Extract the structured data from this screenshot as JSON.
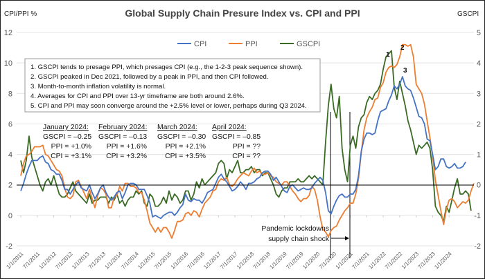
{
  "chart_data": {
    "type": "line",
    "title": "Global Supply Chain Presure Index vs. CPI and PPI",
    "ylabel_left": "CPI/PPI %",
    "ylabel_right": "GSCPI",
    "ylim_left": [
      -2,
      12
    ],
    "yticks_left": [
      "-2",
      "0",
      "2",
      "4",
      "6",
      "8",
      "10",
      "12"
    ],
    "ylim_right": [
      -2,
      5
    ],
    "yticks_right": [
      "-2",
      "-1",
      "0",
      "1",
      "2",
      "3",
      "4",
      "5"
    ],
    "grid": true,
    "legend_position": "top-center",
    "x_start": "1/1/2011",
    "x_end": "3/1/2024",
    "xtick_labels": [
      "1/1/2011",
      "7/1/2011",
      "1/1/2012",
      "7/1/2012",
      "1/1/2013",
      "7/1/2013",
      "1/1/2014",
      "7/1/2014",
      "1/1/2015",
      "7/1/2015",
      "1/1/2016",
      "7/1/2016",
      "1/1/2017",
      "7/1/2017",
      "1/1/2018",
      "7/1/2018",
      "1/1/2019",
      "7/1/2019",
      "1/1/2020",
      "7/1/2020",
      "1/1/2021",
      "7/1/2021",
      "1/1/2022",
      "7/1/2022",
      "1/1/2023",
      "7/1/2023",
      "1/1/2024"
    ],
    "series": [
      {
        "name": "CPI",
        "axis": "left",
        "color": "#4472C4",
        "values": [
          1.6,
          2.1,
          2.7,
          3.2,
          3.6,
          3.6,
          3.6,
          3.8,
          3.9,
          3.5,
          3.4,
          3.0,
          2.9,
          2.7,
          2.7,
          2.3,
          1.7,
          1.7,
          1.4,
          1.7,
          2.0,
          2.2,
          1.8,
          1.7,
          1.6,
          2.0,
          1.5,
          1.1,
          1.4,
          1.8,
          2.0,
          1.5,
          1.2,
          1.0,
          1.2,
          1.5,
          1.6,
          1.1,
          1.5,
          2.0,
          2.1,
          2.1,
          2.0,
          1.7,
          1.7,
          1.7,
          1.3,
          0.8,
          -0.1,
          0.0,
          -0.1,
          -0.2,
          0.0,
          0.1,
          0.2,
          0.2,
          0.0,
          0.2,
          0.5,
          0.7,
          1.4,
          1.0,
          0.9,
          1.1,
          1.0,
          1.0,
          0.8,
          1.1,
          1.5,
          1.6,
          1.7,
          2.1,
          2.5,
          2.7,
          2.4,
          2.2,
          1.9,
          1.6,
          1.7,
          1.9,
          2.2,
          2.0,
          1.7,
          2.1,
          2.1,
          2.2,
          2.4,
          2.5,
          2.8,
          2.9,
          2.9,
          2.7,
          2.3,
          2.5,
          2.2,
          1.9,
          1.6,
          1.5,
          1.9,
          2.0,
          1.8,
          1.6,
          1.7,
          1.8,
          1.7,
          1.7,
          1.8,
          2.1,
          2.3,
          2.5,
          2.3,
          1.5,
          0.3,
          0.1,
          0.6,
          1.0,
          1.3,
          1.4,
          1.2,
          1.2,
          1.4,
          1.4,
          1.7,
          2.6,
          4.2,
          5.0,
          5.4,
          5.4,
          5.3,
          5.4,
          6.2,
          6.8,
          6.9,
          7.0,
          7.5,
          7.9,
          8.5,
          8.3,
          8.6,
          9.1,
          8.5,
          8.3,
          8.2,
          7.7,
          7.1,
          6.5,
          6.4,
          6.0,
          5.0,
          4.9,
          4.0,
          3.0,
          3.2,
          3.7,
          3.7,
          3.2,
          3.1,
          3.2,
          3.4,
          3.1,
          3.1,
          3.2,
          3.5
        ]
      },
      {
        "name": "PPI",
        "axis": "left",
        "color": "#ED7D31",
        "values": [
          2.6,
          3.4,
          3.9,
          4.0,
          4.2,
          4.5,
          4.5,
          4.5,
          4.6,
          4.0,
          3.9,
          3.6,
          3.3,
          3.0,
          2.9,
          2.6,
          1.8,
          1.2,
          1.1,
          1.3,
          2.2,
          2.3,
          1.9,
          1.5,
          1.1,
          1.7,
          1.1,
          0.5,
          1.3,
          1.8,
          1.7,
          1.4,
          0.5,
          0.5,
          1.2,
          1.3,
          1.9,
          1.6,
          2.1,
          2.1,
          1.9,
          1.9,
          1.8,
          1.5,
          1.5,
          1.0,
          0.3,
          -0.5,
          -0.8,
          -1.1,
          -0.8,
          -1.1,
          -0.8,
          -0.8,
          -1.1,
          -1.5,
          -1.0,
          -0.4,
          -0.4,
          -0.3,
          0.1,
          0.2,
          0.0,
          0.3,
          0.2,
          -0.1,
          0.4,
          0.8,
          1.0,
          1.2,
          1.6,
          1.7,
          2.2,
          2.4,
          2.3,
          2.5,
          2.0,
          1.9,
          2.1,
          2.4,
          2.6,
          2.8,
          2.7,
          2.6,
          2.9,
          3.1,
          2.8,
          2.9,
          2.7,
          2.7,
          2.8,
          2.6,
          2.5,
          2.2,
          2.1,
          2.0,
          2.2,
          2.2,
          1.9,
          1.6,
          1.4,
          1.1,
          0.9,
          1.1,
          1.1,
          1.3,
          1.9,
          1.7,
          1.0,
          -0.1,
          -0.9,
          -1.1,
          -1.4,
          -1.0,
          -0.8,
          -0.7,
          -0.3,
          0.0,
          0.3,
          0.5,
          0.8,
          0.8,
          1.4,
          2.4,
          4.1,
          5.6,
          6.4,
          6.8,
          7.1,
          7.6,
          7.7,
          8.4,
          8.7,
          9.4,
          9.7,
          9.8,
          9.7,
          9.9,
          10.4,
          11.2,
          11.2,
          11.1,
          11.2,
          10.4,
          8.6,
          8.3,
          8.0,
          7.3,
          6.2,
          5.1,
          3.9,
          2.3,
          1.3,
          0.3,
          -0.6,
          0.4,
          1.0,
          1.1,
          0.9,
          0.5,
          0.7,
          0.9,
          0.8,
          1.0,
          1.6,
          2.1
        ]
      },
      {
        "name": "GSCPI",
        "axis": "right",
        "color": "#3A6B24",
        "values": [
          0.8,
          0.4,
          0.8,
          1.6,
          0.9,
          0.6,
          0.3,
          0.0,
          -0.2,
          0.1,
          0.2,
          0.0,
          0.3,
          0.0,
          -0.3,
          -0.4,
          -0.4,
          -0.3,
          -0.1,
          0.1,
          -0.2,
          -0.3,
          -0.4,
          -0.5,
          -0.6,
          -0.3,
          -0.6,
          -0.5,
          -0.5,
          -0.4,
          -0.4,
          -0.4,
          -0.6,
          -0.4,
          -0.5,
          -0.3,
          -0.6,
          -0.5,
          -0.7,
          -0.5,
          -0.4,
          -0.4,
          -0.2,
          -0.3,
          -0.2,
          -0.6,
          -0.7,
          -0.3,
          -0.4,
          -0.7,
          -0.7,
          -0.6,
          -0.4,
          -0.6,
          -0.2,
          -0.5,
          -0.3,
          -0.4,
          -0.6,
          -0.5,
          -0.2,
          -0.2,
          -0.5,
          -0.3,
          0.1,
          -0.1,
          0.2,
          0.0,
          0.1,
          0.2,
          0.3,
          0.4,
          0.7,
          0.8,
          0.7,
          0.2,
          0.5,
          0.4,
          0.6,
          0.8,
          0.4,
          0.4,
          0.5,
          0.5,
          0.6,
          0.4,
          0.5,
          0.5,
          0.3,
          0.4,
          0.4,
          0.2,
          0.0,
          -0.3,
          -0.4,
          -0.2,
          -0.1,
          -0.1,
          0.1,
          0.1,
          0.1,
          0.2,
          0.1,
          0.1,
          0.2,
          0.3,
          0.2,
          0.3,
          0.2,
          0.1,
          0.0,
          1.4,
          2.6,
          3.3,
          2.5,
          2.2,
          2.9,
          1.2,
          0.5,
          0.1,
          1.3,
          1.6,
          1.2,
          1.9,
          2.2,
          2.3,
          2.7,
          2.9,
          2.8,
          3.0,
          3.1,
          3.3,
          3.8,
          4.2,
          4.3,
          4.4,
          3.2,
          2.8,
          3.4,
          3.0,
          2.6,
          2.1,
          1.8,
          1.4,
          1.0,
          1.3,
          1.2,
          1.3,
          1.4,
          1.2,
          0.5,
          -0.7,
          -0.9,
          -1.0,
          -1.2,
          -0.7,
          -0.9,
          -0.5,
          -0.1,
          0.2,
          -0.3,
          -0.3,
          -0.2,
          -0.3,
          -0.85
        ]
      }
    ],
    "annotations": {
      "notes": [
        "1. GSCPI tends to presage PPI, which presages CPI (e.g., the 1-2-3 peak sequence shown).",
        "2. GSCPI peaked in Dec 2021, followed by a peak in PPI, and then CPI followed.",
        "3. Month-to-month inflation volatility is normal.",
        "4. Averages for CPI and PPI over 13-yr timeframe are both around 2.6%.",
        "5. CPI and PPI may soon converge around the +2.5% level or lower, perhaps during Q3 2024."
      ],
      "monthly": [
        {
          "header": "January 2024:",
          "gscpi": "GSCPI = –0.25",
          "ppi": "PPI = +1.0%",
          "cpi": "CPI = +3.1%"
        },
        {
          "header": "February 2024:",
          "gscpi": "GSCPI = –0.13",
          "ppi": "PPI = +1.6%",
          "cpi": "CPI = +3.2%"
        },
        {
          "header": "March 2024:",
          "gscpi": "GSCPI = –0.30",
          "ppi": "PPI = +2.1%",
          "cpi": "CPI = +3.5%"
        },
        {
          "header": "April 2024:",
          "gscpi": "GSCPI = –0.85",
          "ppi": "PPI = ??",
          "cpi": "CPI = ??"
        }
      ],
      "peaks": [
        "1",
        "2",
        "3"
      ],
      "pandemic_label_line1": "Pandemic lockdowns",
      "pandemic_label_line2": "supply chain shock"
    }
  }
}
